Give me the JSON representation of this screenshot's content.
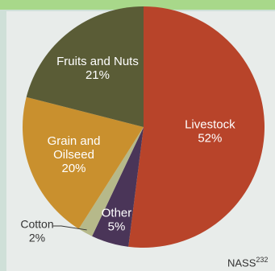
{
  "chart_data": {
    "type": "pie",
    "slices": [
      {
        "label": "Livestock",
        "value": 52,
        "display": "52%",
        "color": "#b8442a"
      },
      {
        "label": "Other",
        "value": 5,
        "display": "5%",
        "color": "#4a3558"
      },
      {
        "label": "Cotton",
        "value": 2,
        "display": "2%",
        "color": "#b6b98a"
      },
      {
        "label": "Grain and Oilseed",
        "value": 20,
        "display": "20%",
        "color": "#c9902e"
      },
      {
        "label": "Fruits and Nuts",
        "value": 21,
        "display": "21%",
        "color": "#5a5c36"
      }
    ],
    "label_lines": {
      "Livestock": [
        "Livestock",
        "52%"
      ],
      "Other": [
        "Other",
        "5%"
      ],
      "Cotton": [
        "Cotton",
        "2%"
      ],
      "Grain and Oilseed": [
        "Grain and",
        "Oilseed",
        "20%"
      ],
      "Fruits and Nuts": [
        "Fruits and Nuts",
        "21%"
      ]
    }
  },
  "source": {
    "text": "NASS",
    "superscript": "232"
  },
  "colors": {
    "top_band": "#a8d88a",
    "background": "#cfe0d8"
  }
}
